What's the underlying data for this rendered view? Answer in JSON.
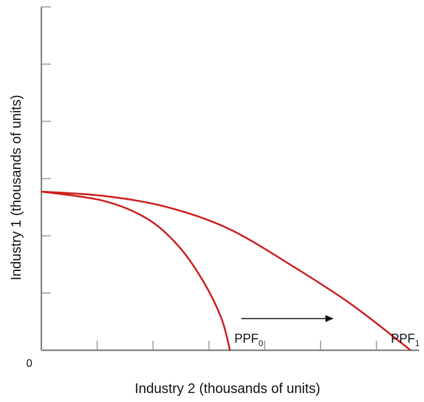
{
  "chart_data": {
    "type": "line",
    "title": "",
    "xlabel": "Industry 2 (thousands of units)",
    "ylabel": "Industry 1 (thousands of units)",
    "origin_label": "0",
    "x_ticks": 6,
    "y_ticks": 6,
    "xlim": [
      0,
      6
    ],
    "ylim": [
      0,
      6
    ],
    "series": [
      {
        "name": "PPF",
        "subscript": "0",
        "x": [
          0,
          1.0,
          1.7,
          2.2,
          2.6,
          2.9,
          3.04
        ],
        "y": [
          2.95,
          2.78,
          2.45,
          1.95,
          1.3,
          0.6,
          0
        ]
      },
      {
        "name": "PPF",
        "subscript": "1",
        "x": [
          0,
          1.0,
          2.0,
          3.0,
          4.0,
          5.0,
          5.95
        ],
        "y": [
          2.95,
          2.87,
          2.67,
          2.27,
          1.6,
          0.85,
          0
        ]
      }
    ],
    "annotation": {
      "type": "arrow",
      "direction": "right"
    },
    "colors": {
      "curve": "#cc1f1f",
      "axis": "#808080",
      "text": "#111111"
    }
  }
}
